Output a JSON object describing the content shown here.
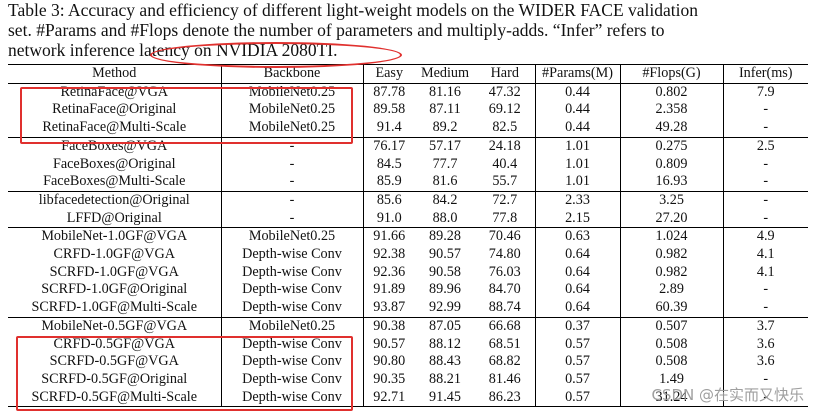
{
  "caption": {
    "line1": "Table 3: Accuracy and efficiency of different light-weight models on the WIDER FACE validation",
    "line2": "set.  #Params and #Flops denote the number of parameters and multiply-adds.  “Infer” refers to",
    "line3": "network inference latency on NVIDIA 2080TI."
  },
  "table": {
    "headers": [
      "Method",
      "Backbone",
      "Easy",
      "Medium",
      "Hard",
      "#Params(M)",
      "#Flops(G)",
      "Infer(ms)"
    ],
    "rows": [
      [
        "RetinaFace@VGA",
        "MobileNet0.25",
        "87.78",
        "81.16",
        "47.32",
        "0.44",
        "0.802",
        "7.9"
      ],
      [
        "RetinaFace@Original",
        "MobileNet0.25",
        "89.58",
        "87.11",
        "69.12",
        "0.44",
        "2.358",
        "-"
      ],
      [
        "RetinaFace@Multi-Scale",
        "MobileNet0.25",
        "91.4",
        "89.2",
        "82.5",
        "0.44",
        "49.28",
        "-"
      ],
      [
        "FaceBoxes@VGA",
        "-",
        "76.17",
        "57.17",
        "24.18",
        "1.01",
        "0.275",
        "2.5"
      ],
      [
        "FaceBoxes@Original",
        "-",
        "84.5",
        "77.7",
        "40.4",
        "1.01",
        "0.809",
        "-"
      ],
      [
        "FaceBoxes@Multi-Scale",
        "-",
        "85.9",
        "81.6",
        "55.7",
        "1.01",
        "16.93",
        "-"
      ],
      [
        "libfacedetection@Original",
        "-",
        "85.6",
        "84.2",
        "72.7",
        "2.33",
        "3.25",
        "-"
      ],
      [
        "LFFD@Original",
        "-",
        "91.0",
        "88.0",
        "77.8",
        "2.15",
        "27.20",
        "-"
      ],
      [
        "MobileNet-1.0GF@VGA",
        "MobileNet0.25",
        "91.66",
        "89.28",
        "70.46",
        "0.63",
        "1.024",
        "4.9"
      ],
      [
        "CRFD-1.0GF@VGA",
        "Depth-wise Conv",
        "92.38",
        "90.57",
        "74.80",
        "0.64",
        "0.982",
        "4.1"
      ],
      [
        "SCRFD-1.0GF@VGA",
        "Depth-wise Conv",
        "92.36",
        "90.58",
        "76.03",
        "0.64",
        "0.982",
        "4.1"
      ],
      [
        "SCRFD-1.0GF@Original",
        "Depth-wise Conv",
        "91.89",
        "89.96",
        "84.70",
        "0.64",
        "2.89",
        "-"
      ],
      [
        "SCRFD-1.0GF@Multi-Scale",
        "Depth-wise Conv",
        "93.87",
        "92.99",
        "88.74",
        "0.64",
        "60.39",
        "-"
      ],
      [
        "MobileNet-0.5GF@VGA",
        "MobileNet0.25",
        "90.38",
        "87.05",
        "66.68",
        "0.37",
        "0.507",
        "3.7"
      ],
      [
        "CRFD-0.5GF@VGA",
        "Depth-wise Conv",
        "90.57",
        "88.12",
        "68.51",
        "0.57",
        "0.508",
        "3.6"
      ],
      [
        "SCRFD-0.5GF@VGA",
        "Depth-wise Conv",
        "90.80",
        "88.43",
        "68.82",
        "0.57",
        "0.508",
        "3.6"
      ],
      [
        "SCRFD-0.5GF@Original",
        "Depth-wise Conv",
        "90.35",
        "88.21",
        "81.46",
        "0.57",
        "1.49",
        "-"
      ],
      [
        "SCRFD-0.5GF@Multi-Scale",
        "Depth-wise Conv",
        "92.71",
        "91.45",
        "86.23",
        "0.57",
        "31.24",
        "-"
      ]
    ],
    "group_starts": [
      0,
      3,
      6,
      8,
      13
    ]
  },
  "annotation_color": "#e0302e",
  "watermark": "CSDN @在实而又快乐"
}
